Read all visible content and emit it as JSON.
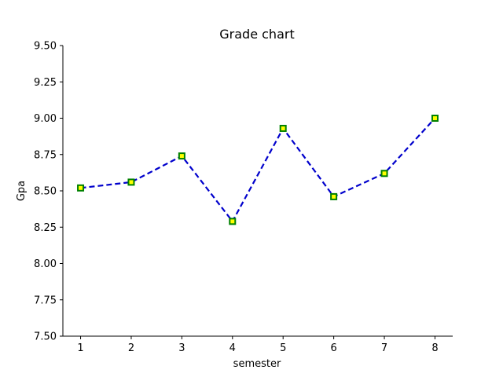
{
  "chart_data": {
    "type": "line",
    "title": "Grade chart",
    "xlabel": "semester",
    "ylabel": "Gpa",
    "x": [
      1,
      2,
      3,
      4,
      5,
      6,
      7,
      8
    ],
    "series": [
      {
        "values": [
          8.52,
          8.56,
          8.74,
          8.29,
          8.93,
          8.46,
          8.62,
          9.0
        ]
      }
    ],
    "xlim": [
      0.65,
      8.35
    ],
    "ylim": [
      7.5,
      9.5
    ],
    "xticks": [
      1,
      2,
      3,
      4,
      5,
      6,
      7,
      8
    ],
    "yticks": [
      "7.50",
      "7.75",
      "8.00",
      "8.25",
      "8.50",
      "8.75",
      "9.00",
      "9.25",
      "9.50"
    ],
    "grid": false,
    "line_color": "#0000cc",
    "line_style": "dashed",
    "marker": "square",
    "marker_edge_color": "#008000",
    "marker_face_color": "#ffff00"
  }
}
